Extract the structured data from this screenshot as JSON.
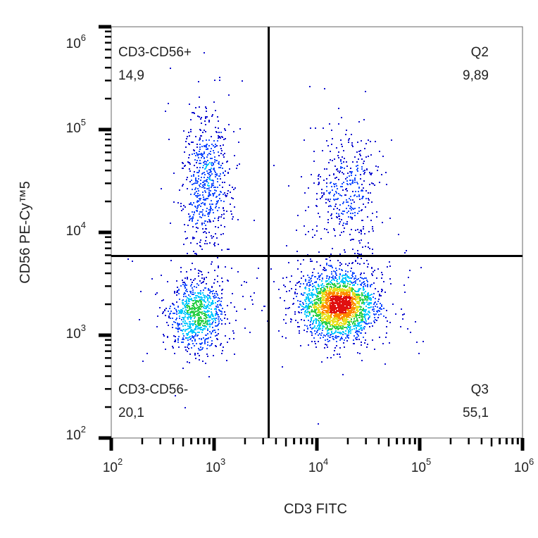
{
  "chart_data": {
    "type": "scatter",
    "xlabel": "CD3 FITC",
    "ylabel": "CD56 PE-Cy™5",
    "x_scale": "log",
    "y_scale": "log",
    "xlim": [
      100,
      1000000
    ],
    "ylim": [
      100,
      1000000
    ],
    "tick_base": "10",
    "x_tick_exponents": [
      "2",
      "3",
      "4",
      "5",
      "6"
    ],
    "y_tick_exponents": [
      "2",
      "3",
      "4",
      "5",
      "6"
    ],
    "grid": false,
    "coloring": "density (blue → cyan → green → yellow → red)",
    "gates": {
      "x_threshold": 3400,
      "y_threshold": 5900
    },
    "quadrants": [
      {
        "name": "CD3-CD56+",
        "value": "14,9",
        "position": "top-left"
      },
      {
        "name": "Q2",
        "value": "9,89",
        "position": "top-right"
      },
      {
        "name": "CD3-CD56-",
        "value": "20,1",
        "position": "bottom-left"
      },
      {
        "name": "Q3",
        "value": "55,1",
        "position": "bottom-right"
      }
    ],
    "populations": [
      {
        "quadrant": "CD3-CD56+",
        "percent": 14.9,
        "center_log10": [
          2.92,
          4.5
        ],
        "spread_log10": [
          0.11,
          0.33
        ]
      },
      {
        "quadrant": "Q2",
        "percent": 9.89,
        "center_log10": [
          4.27,
          4.4
        ],
        "spread_log10": [
          0.16,
          0.3
        ]
      },
      {
        "quadrant": "CD3-CD56-",
        "percent": 20.1,
        "center_log10": [
          2.83,
          3.2
        ],
        "spread_log10": [
          0.13,
          0.17
        ]
      },
      {
        "quadrant": "Q3",
        "percent": 55.1,
        "center_log10": [
          4.2,
          3.3
        ],
        "spread_log10": [
          0.17,
          0.15
        ]
      }
    ],
    "density_colors": [
      "#1010d0",
      "#1a4fff",
      "#00c8ff",
      "#2fd04a",
      "#e8e020",
      "#ff8a00",
      "#e01010"
    ]
  }
}
